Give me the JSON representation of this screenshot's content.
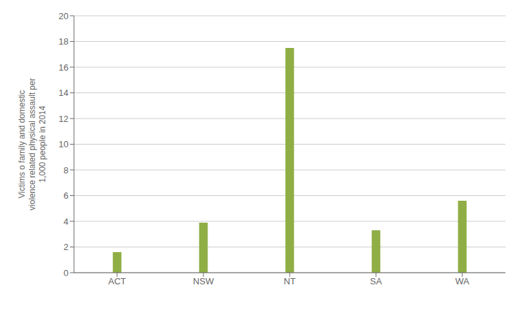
{
  "chart_data": {
    "type": "bar",
    "ylabel": "Victims o family and domestic\nviolence related physical assault per\n1,000 people in 2014",
    "categories": [
      "ACT",
      "NSW",
      "NT",
      "SA",
      "WA"
    ],
    "values": [
      1.6,
      3.9,
      17.5,
      3.3,
      5.6
    ],
    "color": "#8fae45",
    "ylim": [
      0,
      20
    ],
    "yticks": [
      0,
      2,
      4,
      6,
      8,
      10,
      12,
      14,
      16,
      18,
      20
    ],
    "grid": true
  }
}
